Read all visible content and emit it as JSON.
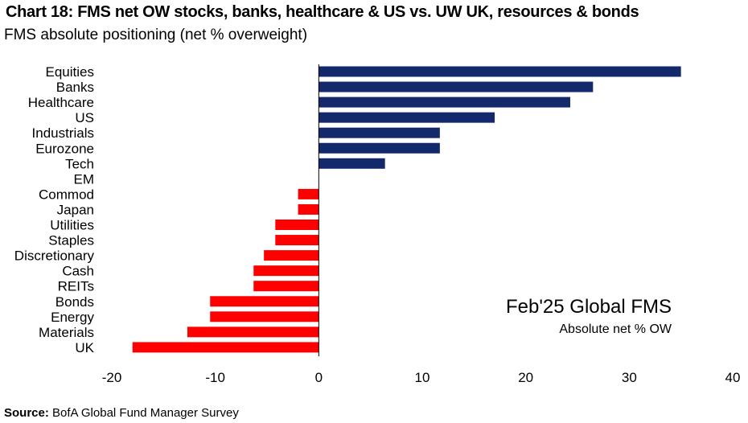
{
  "title": "Chart 18: FMS net OW stocks, banks, healthcare & US vs. UW UK, resources & bonds",
  "subtitle": "FMS absolute positioning (net % overweight)",
  "annotation": {
    "main": "Feb'25 Global FMS",
    "sub": "Absolute net % OW"
  },
  "source": {
    "label": "Source:",
    "text": "BofA Global Fund Manager Survey"
  },
  "colors": {
    "positive": "#13296B",
    "negative": "#FF0000",
    "axis": "#000000"
  },
  "chart_data": {
    "type": "bar",
    "orientation": "horizontal",
    "categories": [
      "Equities",
      "Banks",
      "Healthcare",
      "US",
      "Industrials",
      "Eurozone",
      "Tech",
      "EM",
      "Commod",
      "Japan",
      "Utilities",
      "Staples",
      "Discretionary",
      "Cash",
      "REITs",
      "Bonds",
      "Energy",
      "Materials",
      "UK"
    ],
    "values": [
      35,
      26.5,
      24.3,
      17,
      11.7,
      11.7,
      6.4,
      0,
      -2,
      -2,
      -4.2,
      -4.2,
      -5.3,
      -6.3,
      -6.3,
      -10.5,
      -10.5,
      -12.7,
      -18
    ],
    "xlim": [
      -20,
      40
    ],
    "xticks": [
      "-20",
      "-10",
      "0",
      "10",
      "20",
      "30",
      "40"
    ],
    "grid": false
  }
}
